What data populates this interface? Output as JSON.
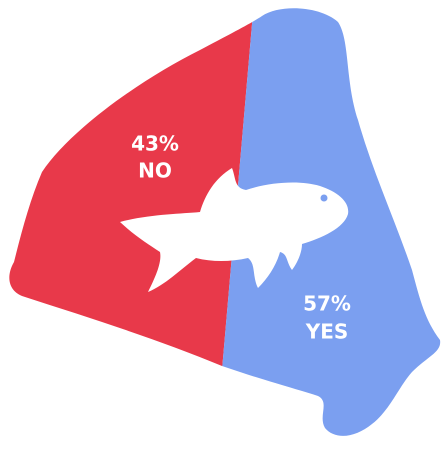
{
  "chart_data": {
    "type": "pie",
    "categories": [
      "NO",
      "YES"
    ],
    "values": [
      43,
      57
    ],
    "value_labels": [
      "43%",
      "57%"
    ],
    "colors": [
      "#e8394a",
      "#7b9ff0"
    ]
  }
}
